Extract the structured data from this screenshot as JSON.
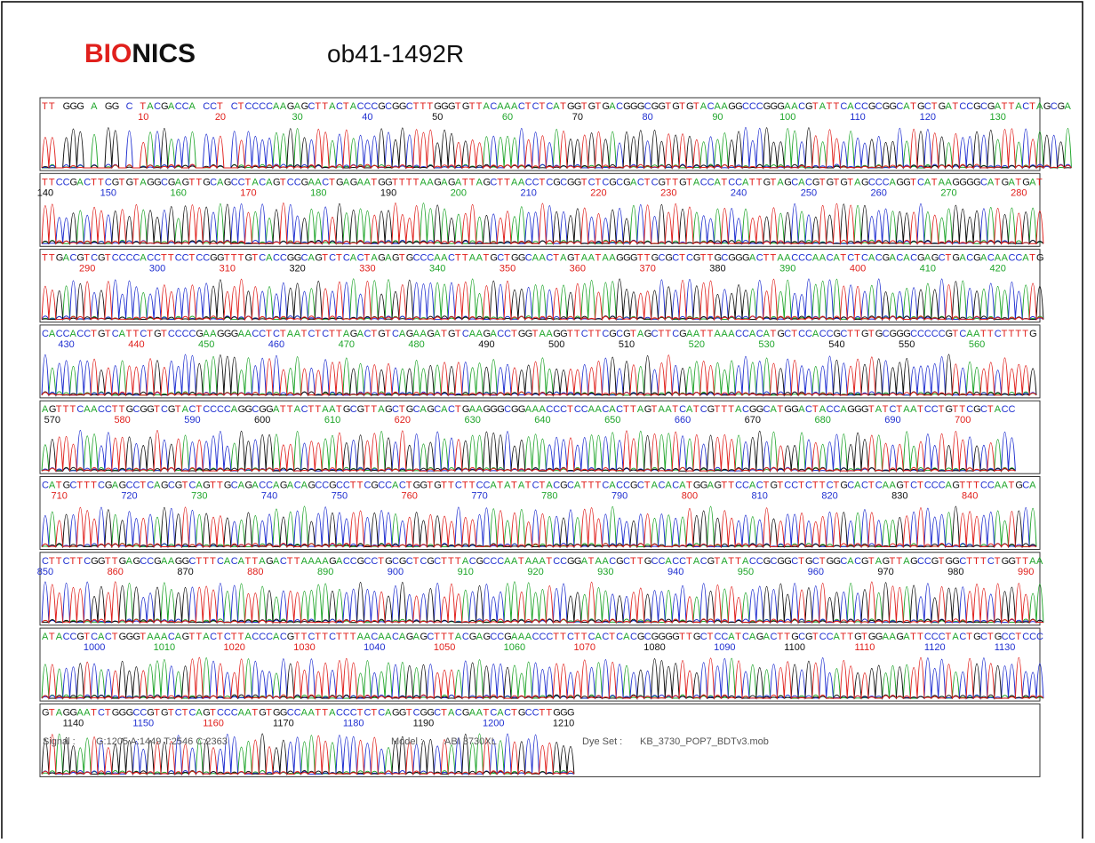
{
  "header": {
    "brand_red": "BIO",
    "brand_black": "NICS",
    "title": "ob41-1492R"
  },
  "panels": [
    {
      "sequence": "TT GGG A GG C TACGACCA CCT CTCCCCAAGAGCTTACTACCCGCGGCTTTGGGTGTTACAAACTCTCATGGTGTGACGGGCGGTGTGTACAAGGCCCGGGAACGTATTCACCGCGGCATGCTGATCCGCGATTACTAGCGA",
      "positions": [
        10,
        20,
        30,
        40,
        50,
        60,
        70,
        80,
        90,
        100,
        110,
        120,
        130
      ]
    },
    {
      "sequence": "TTCCGACTTCGTGTAGGCGAGTTGCAGCCTACAGTCCGAACTGAGAATGGTTTTAAGAGATTAGCTTAACCTCGCGGTCTCGCGACTCGTTGTACCATCCATTGTAGCACGTGTGTAGCCCAGGTCATAAGGGGCATGATGAT",
      "positions": [
        140,
        150,
        160,
        170,
        180,
        190,
        200,
        210,
        220,
        230,
        240,
        250,
        260,
        270,
        280
      ]
    },
    {
      "sequence": "TTGACGTCGTCCCCACCTTCCTCCGGTTTGTCACCGGCAGTCTCACTAGAGTGCCCAACTTAATGCTGGCAACTAGTAATAAGGGTTGCGCTCGTTGCGGGACTTAACCCAACATCTCACGACACGAGCTGACGACAACCATG",
      "positions": [
        290,
        300,
        310,
        320,
        330,
        340,
        350,
        360,
        370,
        380,
        390,
        400,
        410,
        420
      ]
    },
    {
      "sequence": "CACCACCTGTCATTCTGTCCCCGAAGGGAACCTCTAATCTCTTAGACTGTCAGAAGATGTCAAGACCTGGTAAGGTTCTTCGCGTAGCTTCGAATTAAACCACATGCTCCACCGCTTGTGCGGGCCCCCGTCAATTCTTTTG",
      "positions": [
        430,
        440,
        450,
        460,
        470,
        480,
        490,
        500,
        510,
        520,
        530,
        540,
        550,
        560
      ]
    },
    {
      "sequence": "AGTTTCAACCTTGCGGTCGTACTCCCCAGGCGGATTACTTAATGCGTTAGCTGCAGCACTGAAGGGCGGAAACCCTCCAACACTTAGTAATCATCGTTTACGGCATGGACTACCAGGGTATCTAATCCTGTTCGCTACC",
      "positions": [
        570,
        580,
        590,
        600,
        610,
        620,
        630,
        640,
        650,
        660,
        670,
        680,
        690,
        700
      ]
    },
    {
      "sequence": "CATGCTTTCGAGCCTCAGCGTCAGTTGCAGACCAGACAGCCGCCTTCGCCACTGGTGTTCTTCCATATATCTACGCATTTCACCGCTACACATGGAGTTCCACTGTCCTCTTCTGCACTCAAGTCTCCCAGTTTCCAATGCA",
      "positions": [
        710,
        720,
        730,
        740,
        750,
        760,
        770,
        780,
        790,
        800,
        810,
        820,
        830,
        840
      ]
    },
    {
      "sequence": "CTTCTTCGGTTGAGCCGAAGGCTTTCACATTAGACTTAAAAGACCGCCTGCGCTCGCTTTACGCCCAATAAATCCGGATAACGCTTGCCACCTACGTATTACCGCGGCTGCTGGCACGTAGTTAGCCGTGGCTTTCTGGTTAA",
      "positions": [
        850,
        860,
        870,
        880,
        890,
        900,
        910,
        920,
        930,
        940,
        950,
        960,
        970,
        980,
        990
      ]
    },
    {
      "sequence": "ATACCGTCACTGGGTAAACAGTTACTCTTACCCACGTTCTTCTTTAACAACAGAGCTTTACGAGCCGAAACCCTTCTTCACTCACGCGGGGTTGCTCCATCAGACTTGCGTCCATTGTGGAAGATTCCCTACTGCTGCCTCCC",
      "positions": [
        1000,
        1010,
        1020,
        1030,
        1040,
        1050,
        1060,
        1070,
        1080,
        1090,
        1100,
        1110,
        1120,
        1130
      ]
    },
    {
      "sequence": "GTAGGAATCTGGGCCGTGTCTCAGTCCCAATGTGGCCAATTACCCTCTCAGGTCGGCTACGAATCACTGCCTTGGG",
      "positions": [
        1140,
        1150,
        1160,
        1170,
        1180,
        1190,
        1200,
        1210
      ]
    }
  ],
  "footer": {
    "signal_label": "Signal :",
    "signal": "G:1205 A:1449 T:2546 C:2363",
    "model_label": "Model :",
    "model": "ABI 3730XL",
    "dye_label": "Dye Set :",
    "dye": "KB_3730_POP7_BDTv3.mob"
  }
}
